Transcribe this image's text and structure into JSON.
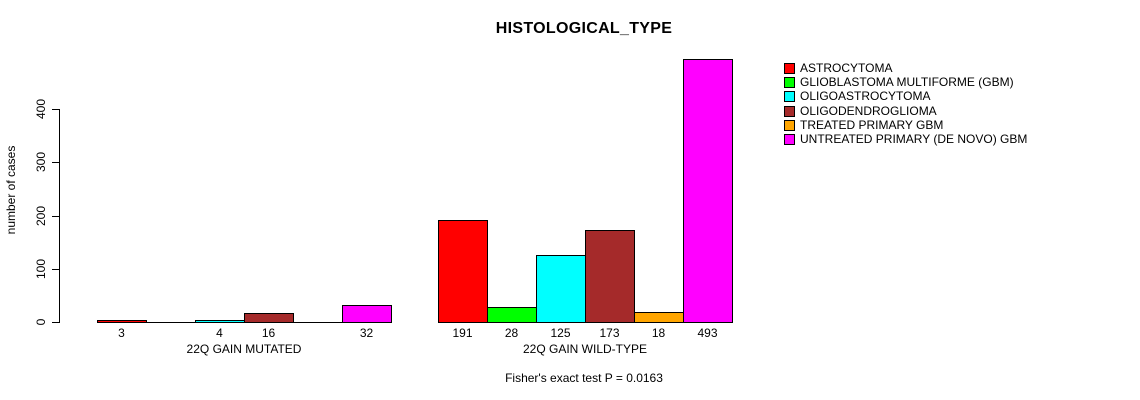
{
  "title": "HISTOLOGICAL_TYPE",
  "annotation": "Fisher's exact test P = 0.0163",
  "chart_data": {
    "type": "bar",
    "title": "HISTOLOGICAL_TYPE",
    "ylabel": "number of cases",
    "xlabel": "",
    "yticks": [
      0,
      100,
      200,
      300,
      400
    ],
    "ylim": [
      0,
      493
    ],
    "grid": false,
    "legend_position": "right-inside",
    "bar_labels": "value shown under each non-zero bar",
    "categories": [
      "22Q GAIN MUTATED",
      "22Q GAIN WILD-TYPE"
    ],
    "series": [
      {
        "name": "ASTROCYTOMA",
        "color": "#FF0000",
        "values": [
          3,
          191
        ]
      },
      {
        "name": "GLIOBLASTOMA MULTIFORME (GBM)",
        "color": "#00FF00",
        "values": [
          0,
          28
        ]
      },
      {
        "name": "OLIGOASTROCYTOMA",
        "color": "#00FFFF",
        "values": [
          4,
          125
        ]
      },
      {
        "name": "OLIGODENDROGLIOMA",
        "color": "#A52A2A",
        "values": [
          16,
          173
        ]
      },
      {
        "name": "TREATED PRIMARY GBM",
        "color": "#FFA500",
        "values": [
          0,
          18
        ]
      },
      {
        "name": "UNTREATED PRIMARY (DE NOVO) GBM",
        "color": "#FF00FF",
        "values": [
          32,
          493
        ]
      }
    ],
    "footnote": "Fisher's exact test P = 0.0163"
  },
  "colors": {
    "background": "#FFFFFF",
    "axis": "#000000",
    "text": "#000000"
  }
}
